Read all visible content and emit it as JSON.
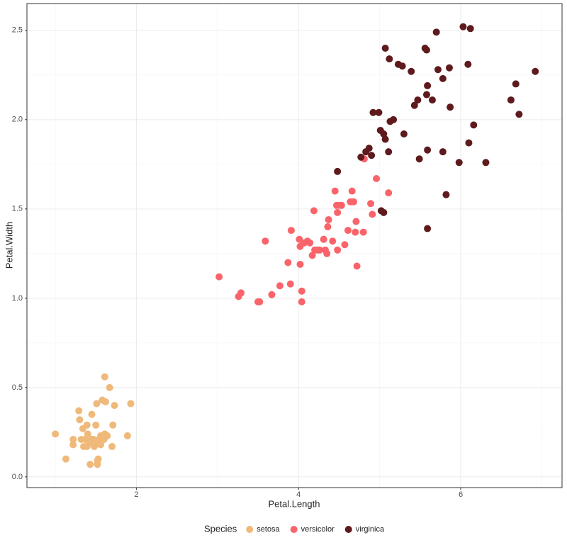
{
  "chart_data": {
    "type": "scatter",
    "xlabel": "Petal.Length",
    "ylabel": "Petal.Width",
    "legend_title": "Species",
    "legend": "bottom",
    "grid": true,
    "xlim": [
      0.65,
      7.25
    ],
    "ylim": [
      -0.06,
      2.65
    ],
    "xticks": [
      2,
      4,
      6
    ],
    "yticks": [
      {
        "value": 0,
        "label": "0.0"
      },
      0.5,
      {
        "value": 1,
        "label": "1.0"
      },
      1.5,
      {
        "value": 2,
        "label": "2.0"
      },
      2.5
    ],
    "series": [
      {
        "name": "setosa",
        "color": "#efb97a",
        "x": [
          1.0,
          1.13,
          1.22,
          1.22,
          1.29,
          1.3,
          1.32,
          1.34,
          1.35,
          1.37,
          1.39,
          1.39,
          1.4,
          1.42,
          1.43,
          1.45,
          1.45,
          1.47,
          1.48,
          1.5,
          1.51,
          1.52,
          1.52,
          1.52,
          1.53,
          1.54,
          1.56,
          1.56,
          1.58,
          1.6,
          1.61,
          1.61,
          1.62,
          1.64,
          1.67,
          1.7,
          1.71,
          1.73,
          1.89,
          1.93
        ],
        "values": [
          0.24,
          0.1,
          0.18,
          0.21,
          0.37,
          0.32,
          0.21,
          0.27,
          0.17,
          0.21,
          0.29,
          0.17,
          0.24,
          0.19,
          0.07,
          0.35,
          0.21,
          0.21,
          0.17,
          0.29,
          0.41,
          0.07,
          0.09,
          0.19,
          0.1,
          0.21,
          0.18,
          0.23,
          0.43,
          0.21,
          0.24,
          0.56,
          0.42,
          0.23,
          0.5,
          0.17,
          0.29,
          0.4,
          0.23,
          0.41
        ]
      },
      {
        "name": "versicolor",
        "color": "#f9646a",
        "x": [
          3.02,
          3.26,
          3.29,
          3.5,
          3.52,
          3.59,
          3.67,
          3.77,
          3.87,
          3.9,
          3.91,
          4.01,
          4.02,
          4.02,
          4.04,
          4.04,
          4.07,
          4.11,
          4.14,
          4.17,
          4.19,
          4.2,
          4.23,
          4.26,
          4.31,
          4.33,
          4.35,
          4.36,
          4.37,
          4.42,
          4.45,
          4.47,
          4.48,
          4.48,
          4.5,
          4.53,
          4.57,
          4.61,
          4.64,
          4.66,
          4.68,
          4.7,
          4.71,
          4.72,
          4.8,
          4.81,
          4.89,
          4.91,
          4.96,
          5.11
        ],
        "values": [
          1.12,
          1.01,
          1.03,
          0.98,
          0.98,
          1.32,
          1.02,
          1.07,
          1.2,
          1.08,
          1.38,
          1.33,
          1.19,
          1.29,
          1.04,
          0.98,
          1.31,
          1.32,
          1.31,
          1.24,
          1.49,
          1.27,
          1.27,
          1.27,
          1.33,
          1.27,
          1.25,
          1.4,
          1.44,
          1.32,
          1.6,
          1.52,
          1.27,
          1.48,
          1.52,
          1.52,
          1.3,
          1.38,
          1.54,
          1.6,
          1.54,
          1.37,
          1.43,
          1.18,
          1.37,
          1.78,
          1.53,
          1.47,
          1.67,
          1.59
        ]
      },
      {
        "name": "virginica",
        "color": "#5e1a1c",
        "x": [
          4.48,
          4.77,
          4.83,
          4.87,
          4.9,
          4.92,
          4.99,
          5.01,
          5.05,
          5.07,
          5.07,
          5.11,
          5.12,
          5.13,
          5.17,
          5.23,
          5.28,
          5.3,
          5.39,
          5.43,
          5.47,
          5.49,
          5.56,
          5.58,
          5.59,
          5.58,
          5.59,
          5.59,
          5.65,
          5.7,
          5.72,
          5.78,
          5.78,
          5.82,
          5.86,
          5.87,
          5.98,
          6.03,
          6.09,
          6.1,
          6.12,
          6.16,
          6.31,
          6.62,
          6.68,
          6.72,
          6.92,
          5.02,
          5.05
        ],
        "values": [
          1.71,
          1.79,
          1.82,
          1.84,
          1.8,
          2.04,
          2.04,
          1.94,
          1.92,
          1.89,
          2.4,
          1.82,
          2.34,
          1.99,
          2.0,
          2.31,
          2.3,
          1.92,
          2.27,
          2.08,
          2.11,
          1.78,
          2.4,
          2.39,
          2.19,
          2.14,
          1.83,
          1.39,
          2.11,
          2.49,
          2.28,
          2.23,
          1.82,
          1.58,
          2.29,
          2.07,
          1.76,
          2.52,
          2.31,
          1.87,
          2.51,
          1.97,
          1.76,
          2.11,
          2.2,
          2.03,
          2.27,
          1.49,
          1.48
        ]
      }
    ]
  }
}
